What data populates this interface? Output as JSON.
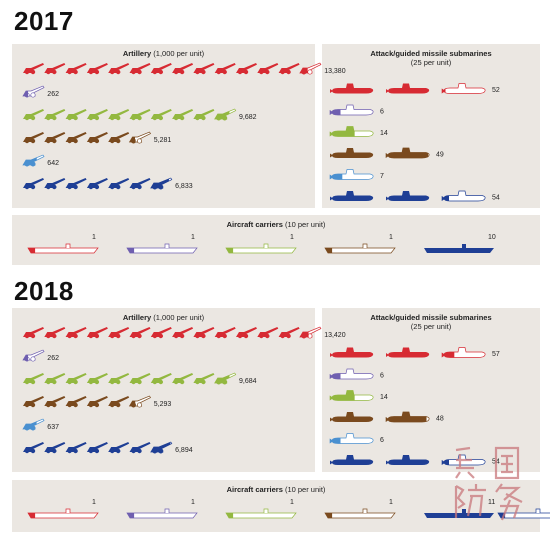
{
  "blocks": [
    {
      "year": "2017",
      "artillery": {
        "title_bold": "Artillery",
        "title_rest": " (1,000 per unit)",
        "rows": [
          {
            "value": 13380,
            "label": "13,380",
            "color": "#d72b33"
          },
          {
            "value": 262,
            "label": "262",
            "color": "#6f5fb0"
          },
          {
            "value": 9682,
            "label": "9,682",
            "color": "#93b840"
          },
          {
            "value": 5281,
            "label": "5,281",
            "color": "#7a4a1e"
          },
          {
            "value": 642,
            "label": "642",
            "color": "#4a90d0"
          },
          {
            "value": 6833,
            "label": "6,833",
            "color": "#1f3f95"
          }
        ]
      },
      "submarines": {
        "title_line1": "Attack/guided missile submarines",
        "title_line2": "(25 per unit)",
        "rows": [
          {
            "value": 52,
            "label": "52",
            "color": "#d72b33"
          },
          {
            "value": 6,
            "label": "6",
            "color": "#6f5fb0"
          },
          {
            "value": 14,
            "label": "14",
            "color": "#93b840"
          },
          {
            "value": 49,
            "label": "49",
            "color": "#7a4a1e"
          },
          {
            "value": 7,
            "label": "7",
            "color": "#4a90d0"
          },
          {
            "value": 54,
            "label": "54",
            "color": "#1f3f95"
          }
        ]
      },
      "carriers": {
        "title_bold": "Aircraft carriers",
        "title_rest": " (10 per unit)",
        "items": [
          {
            "value": 1,
            "label": "1",
            "color": "#d72b33"
          },
          {
            "value": 1,
            "label": "1",
            "color": "#6f5fb0"
          },
          {
            "value": 1,
            "label": "1",
            "color": "#93b840"
          },
          {
            "value": 1,
            "label": "1",
            "color": "#7a4a1e"
          },
          {
            "value": 10,
            "label": "10",
            "color": "#1f3f95"
          }
        ]
      }
    },
    {
      "year": "2018",
      "artillery": {
        "title_bold": "Artillery",
        "title_rest": " (1,000 per unit)",
        "rows": [
          {
            "value": 13420,
            "label": "13,420",
            "color": "#d72b33"
          },
          {
            "value": 262,
            "label": "262",
            "color": "#6f5fb0"
          },
          {
            "value": 9684,
            "label": "9,684",
            "color": "#93b840"
          },
          {
            "value": 5293,
            "label": "5,293",
            "color": "#7a4a1e"
          },
          {
            "value": 637,
            "label": "637",
            "color": "#4a90d0"
          },
          {
            "value": 6894,
            "label": "6,894",
            "color": "#1f3f95"
          }
        ]
      },
      "submarines": {
        "title_line1": "Attack/guided missile submarines",
        "title_line2": "(25 per unit)",
        "rows": [
          {
            "value": 57,
            "label": "57",
            "color": "#d72b33"
          },
          {
            "value": 6,
            "label": "6",
            "color": "#6f5fb0"
          },
          {
            "value": 14,
            "label": "14",
            "color": "#93b840"
          },
          {
            "value": 48,
            "label": "48",
            "color": "#7a4a1e"
          },
          {
            "value": 6,
            "label": "6",
            "color": "#4a90d0"
          },
          {
            "value": 54,
            "label": "54",
            "color": "#1f3f95"
          }
        ]
      },
      "carriers": {
        "title_bold": "Aircraft carriers",
        "title_rest": " (10 per unit)",
        "items": [
          {
            "value": 1,
            "label": "1",
            "color": "#d72b33"
          },
          {
            "value": 1,
            "label": "1",
            "color": "#6f5fb0"
          },
          {
            "value": 1,
            "label": "1",
            "color": "#93b840"
          },
          {
            "value": 1,
            "label": "1",
            "color": "#7a4a1e"
          },
          {
            "value": 11,
            "label": "11",
            "color": "#1f3f95"
          }
        ]
      }
    }
  ],
  "chart_data": [
    {
      "type": "bar",
      "title": "Artillery (1,000 per unit)",
      "subtitle": "2017",
      "values": [
        13380,
        262,
        9682,
        5281,
        642,
        6833
      ]
    },
    {
      "type": "bar",
      "title": "Attack/guided missile submarines (25 per unit)",
      "subtitle": "2017",
      "values": [
        52,
        6,
        14,
        49,
        7,
        54
      ]
    },
    {
      "type": "bar",
      "title": "Aircraft carriers (10 per unit)",
      "subtitle": "2017",
      "values": [
        1,
        1,
        1,
        1,
        10
      ]
    },
    {
      "type": "bar",
      "title": "Artillery (1,000 per unit)",
      "subtitle": "2018",
      "values": [
        13420,
        262,
        9684,
        5293,
        637,
        6894
      ]
    },
    {
      "type": "bar",
      "title": "Attack/guided missile submarines (25 per unit)",
      "subtitle": "2018",
      "values": [
        57,
        6,
        14,
        48,
        6,
        54
      ]
    },
    {
      "type": "bar",
      "title": "Aircraft carriers (10 per unit)",
      "subtitle": "2018",
      "values": [
        1,
        1,
        1,
        1,
        11
      ]
    }
  ],
  "watermark": {
    "text": "兵国防务",
    "color": "#c9787c"
  }
}
